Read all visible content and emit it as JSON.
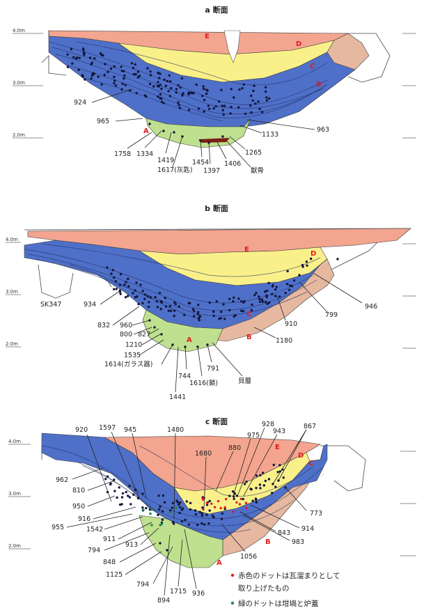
{
  "depth_labels": [
    "4.0m",
    "3.0m",
    "2.0m"
  ],
  "colors": {
    "E": "#f3a58f",
    "D": "#f9f08a",
    "C": "#4f70c8",
    "B": "#e6b8a0",
    "A": "#bfe08e",
    "dot": "#12163a",
    "red_dot": "#e01b1b",
    "green_dot": "#1f8c4e"
  },
  "sections": [
    {
      "title": "a 断面",
      "layers": [
        "E",
        "D",
        "C",
        "B",
        "A"
      ],
      "labels": [
        "924",
        "965",
        "1758",
        "1334",
        "1419",
        "1617(灰匙)",
        "1454",
        "1397",
        "1406",
        "獣骨",
        "1265",
        "1133",
        "963"
      ]
    },
    {
      "title": "b 断面",
      "layers": [
        "E",
        "D",
        "C",
        "B",
        "A"
      ],
      "labels": [
        "SK347",
        "934",
        "832",
        "960",
        "800",
        "827",
        "1210",
        "1535",
        "1614(ガラス器)",
        "744",
        "1441",
        "1616(鎖)",
        "791",
        "貝層",
        "1180",
        "910",
        "799",
        "946"
      ]
    },
    {
      "title": "c 断面",
      "layers": [
        "E",
        "D",
        "C",
        "B",
        "A"
      ],
      "labels": [
        "920",
        "1597",
        "945",
        "1480",
        "1680",
        "880",
        "975",
        "928",
        "943",
        "867",
        "962",
        "810",
        "950",
        "916",
        "955",
        "1542",
        "911",
        "913",
        "794",
        "848",
        "1125",
        "794",
        "894",
        "1715",
        "936",
        "1056",
        "983",
        "843",
        "914",
        "773"
      ]
    }
  ],
  "legend": [
    {
      "color": "red",
      "text": "赤色のドットは瓦溜まりとして",
      "text2": "取り上げたもの"
    },
    {
      "color": "green",
      "text": "緑のドットは坩堝と炉蓋"
    }
  ]
}
